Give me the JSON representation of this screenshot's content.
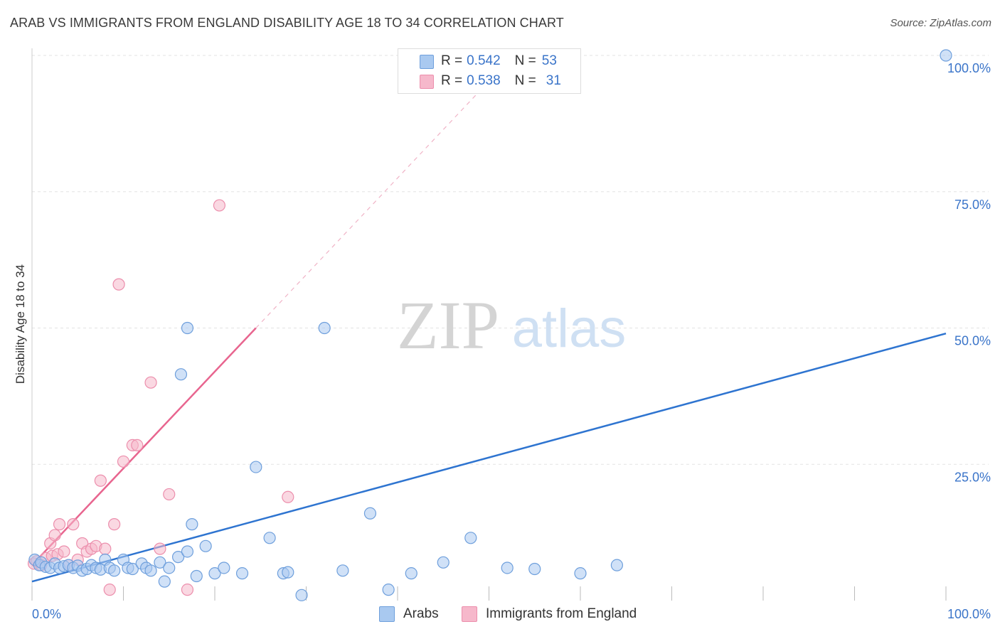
{
  "title": "ARAB VS IMMIGRANTS FROM ENGLAND DISABILITY AGE 18 TO 34 CORRELATION CHART",
  "source": "Source: ZipAtlas.com",
  "watermark": {
    "zip": "ZIP",
    "atlas": "atlas"
  },
  "legend": {
    "arabs": {
      "r_label": "R = ",
      "r_value": "0.542",
      "n_label": "N = ",
      "n_value": "53"
    },
    "england": {
      "r_label": "R = ",
      "r_value": "0.538",
      "n_label": "N = ",
      "n_value": "31"
    }
  },
  "bottom_legend": {
    "arabs": "Arabs",
    "england": "Immigrants from England"
  },
  "colors": {
    "arabs_fill": "#a9c9f0",
    "arabs_stroke": "#6e9fdc",
    "arabs_line": "#2e74d0",
    "england_fill": "#f6b8cb",
    "england_stroke": "#ec8eac",
    "england_line": "#e8658f",
    "tick_text": "#3a74c9",
    "grid": "#e3e3e3"
  },
  "chart_data": {
    "type": "scatter",
    "xlabel": "",
    "ylabel": "Disability Age 18 to 34",
    "xlim": [
      0,
      100
    ],
    "ylim": [
      0,
      100
    ],
    "x_tick_labels": [
      "0.0%",
      "100.0%"
    ],
    "y_tick_labels": [
      "25.0%",
      "50.0%",
      "75.0%",
      "100.0%"
    ],
    "y_ticks": [
      25,
      50,
      75,
      100
    ],
    "series": [
      {
        "name": "Arabs",
        "points": [
          [
            0.3,
            7.5
          ],
          [
            0.8,
            6.5
          ],
          [
            1.0,
            7.0
          ],
          [
            1.5,
            6.2
          ],
          [
            2.0,
            6.0
          ],
          [
            2.5,
            6.8
          ],
          [
            3.0,
            6.0
          ],
          [
            3.5,
            6.3
          ],
          [
            4.0,
            6.5
          ],
          [
            4.5,
            6.0
          ],
          [
            5.0,
            6.4
          ],
          [
            5.5,
            5.5
          ],
          [
            6.0,
            5.8
          ],
          [
            6.5,
            6.5
          ],
          [
            7.0,
            6.0
          ],
          [
            7.5,
            5.7
          ],
          [
            8.0,
            7.5
          ],
          [
            8.5,
            6.0
          ],
          [
            9.0,
            5.5
          ],
          [
            10.0,
            7.5
          ],
          [
            10.5,
            6.0
          ],
          [
            11.0,
            5.8
          ],
          [
            12.0,
            6.8
          ],
          [
            12.5,
            6.0
          ],
          [
            13.0,
            5.5
          ],
          [
            14.0,
            7.0
          ],
          [
            14.5,
            3.5
          ],
          [
            15.0,
            6.0
          ],
          [
            16.0,
            8.0
          ],
          [
            17.0,
            9.0
          ],
          [
            17.5,
            14.0
          ],
          [
            18.0,
            4.5
          ],
          [
            19.0,
            10.0
          ],
          [
            20.0,
            5.0
          ],
          [
            21.0,
            6.0
          ],
          [
            23.0,
            5.0
          ],
          [
            24.5,
            24.5
          ],
          [
            26.0,
            11.5
          ],
          [
            27.5,
            5.0
          ],
          [
            28.0,
            5.2
          ],
          [
            29.5,
            1.0
          ],
          [
            32.0,
            50.0
          ],
          [
            34.0,
            5.5
          ],
          [
            37.0,
            16.0
          ],
          [
            39.0,
            2.0
          ],
          [
            41.5,
            5.0
          ],
          [
            45.0,
            7.0
          ],
          [
            48.0,
            11.5
          ],
          [
            52.0,
            6.0
          ],
          [
            55.0,
            5.8
          ],
          [
            60.0,
            5.0
          ],
          [
            64.0,
            6.5
          ],
          [
            100.0,
            100.0
          ]
        ],
        "extra_points": [
          [
            16.3,
            41.5
          ],
          [
            17.0,
            50.0
          ]
        ]
      },
      {
        "name": "Immigrants from England",
        "points": [
          [
            0.2,
            6.8
          ],
          [
            0.5,
            7.2
          ],
          [
            1.0,
            6.5
          ],
          [
            1.5,
            7.8
          ],
          [
            2.0,
            10.5
          ],
          [
            2.2,
            8.2
          ],
          [
            2.5,
            12.0
          ],
          [
            2.8,
            8.5
          ],
          [
            3.0,
            14.0
          ],
          [
            3.5,
            9.0
          ],
          [
            4.0,
            6.5
          ],
          [
            4.5,
            14.0
          ],
          [
            5.0,
            7.5
          ],
          [
            5.5,
            10.5
          ],
          [
            6.0,
            9.0
          ],
          [
            6.5,
            9.5
          ],
          [
            7.0,
            10.0
          ],
          [
            7.5,
            22.0
          ],
          [
            8.0,
            9.5
          ],
          [
            8.5,
            2.0
          ],
          [
            9.0,
            14.0
          ],
          [
            9.5,
            58.0
          ],
          [
            10.0,
            25.5
          ],
          [
            11.0,
            28.5
          ],
          [
            11.5,
            28.5
          ],
          [
            13.0,
            40.0
          ],
          [
            14.0,
            9.5
          ],
          [
            15.0,
            19.5
          ],
          [
            17.0,
            2.0
          ],
          [
            20.5,
            72.5
          ],
          [
            28.0,
            19.0
          ]
        ]
      }
    ],
    "trendlines": [
      {
        "name": "Arabs",
        "x": [
          0,
          100
        ],
        "y": [
          3.5,
          49.0
        ]
      },
      {
        "name": "Immigrants from England",
        "x": [
          0,
          24.5
        ],
        "y": [
          6.5,
          50.0
        ]
      }
    ]
  }
}
